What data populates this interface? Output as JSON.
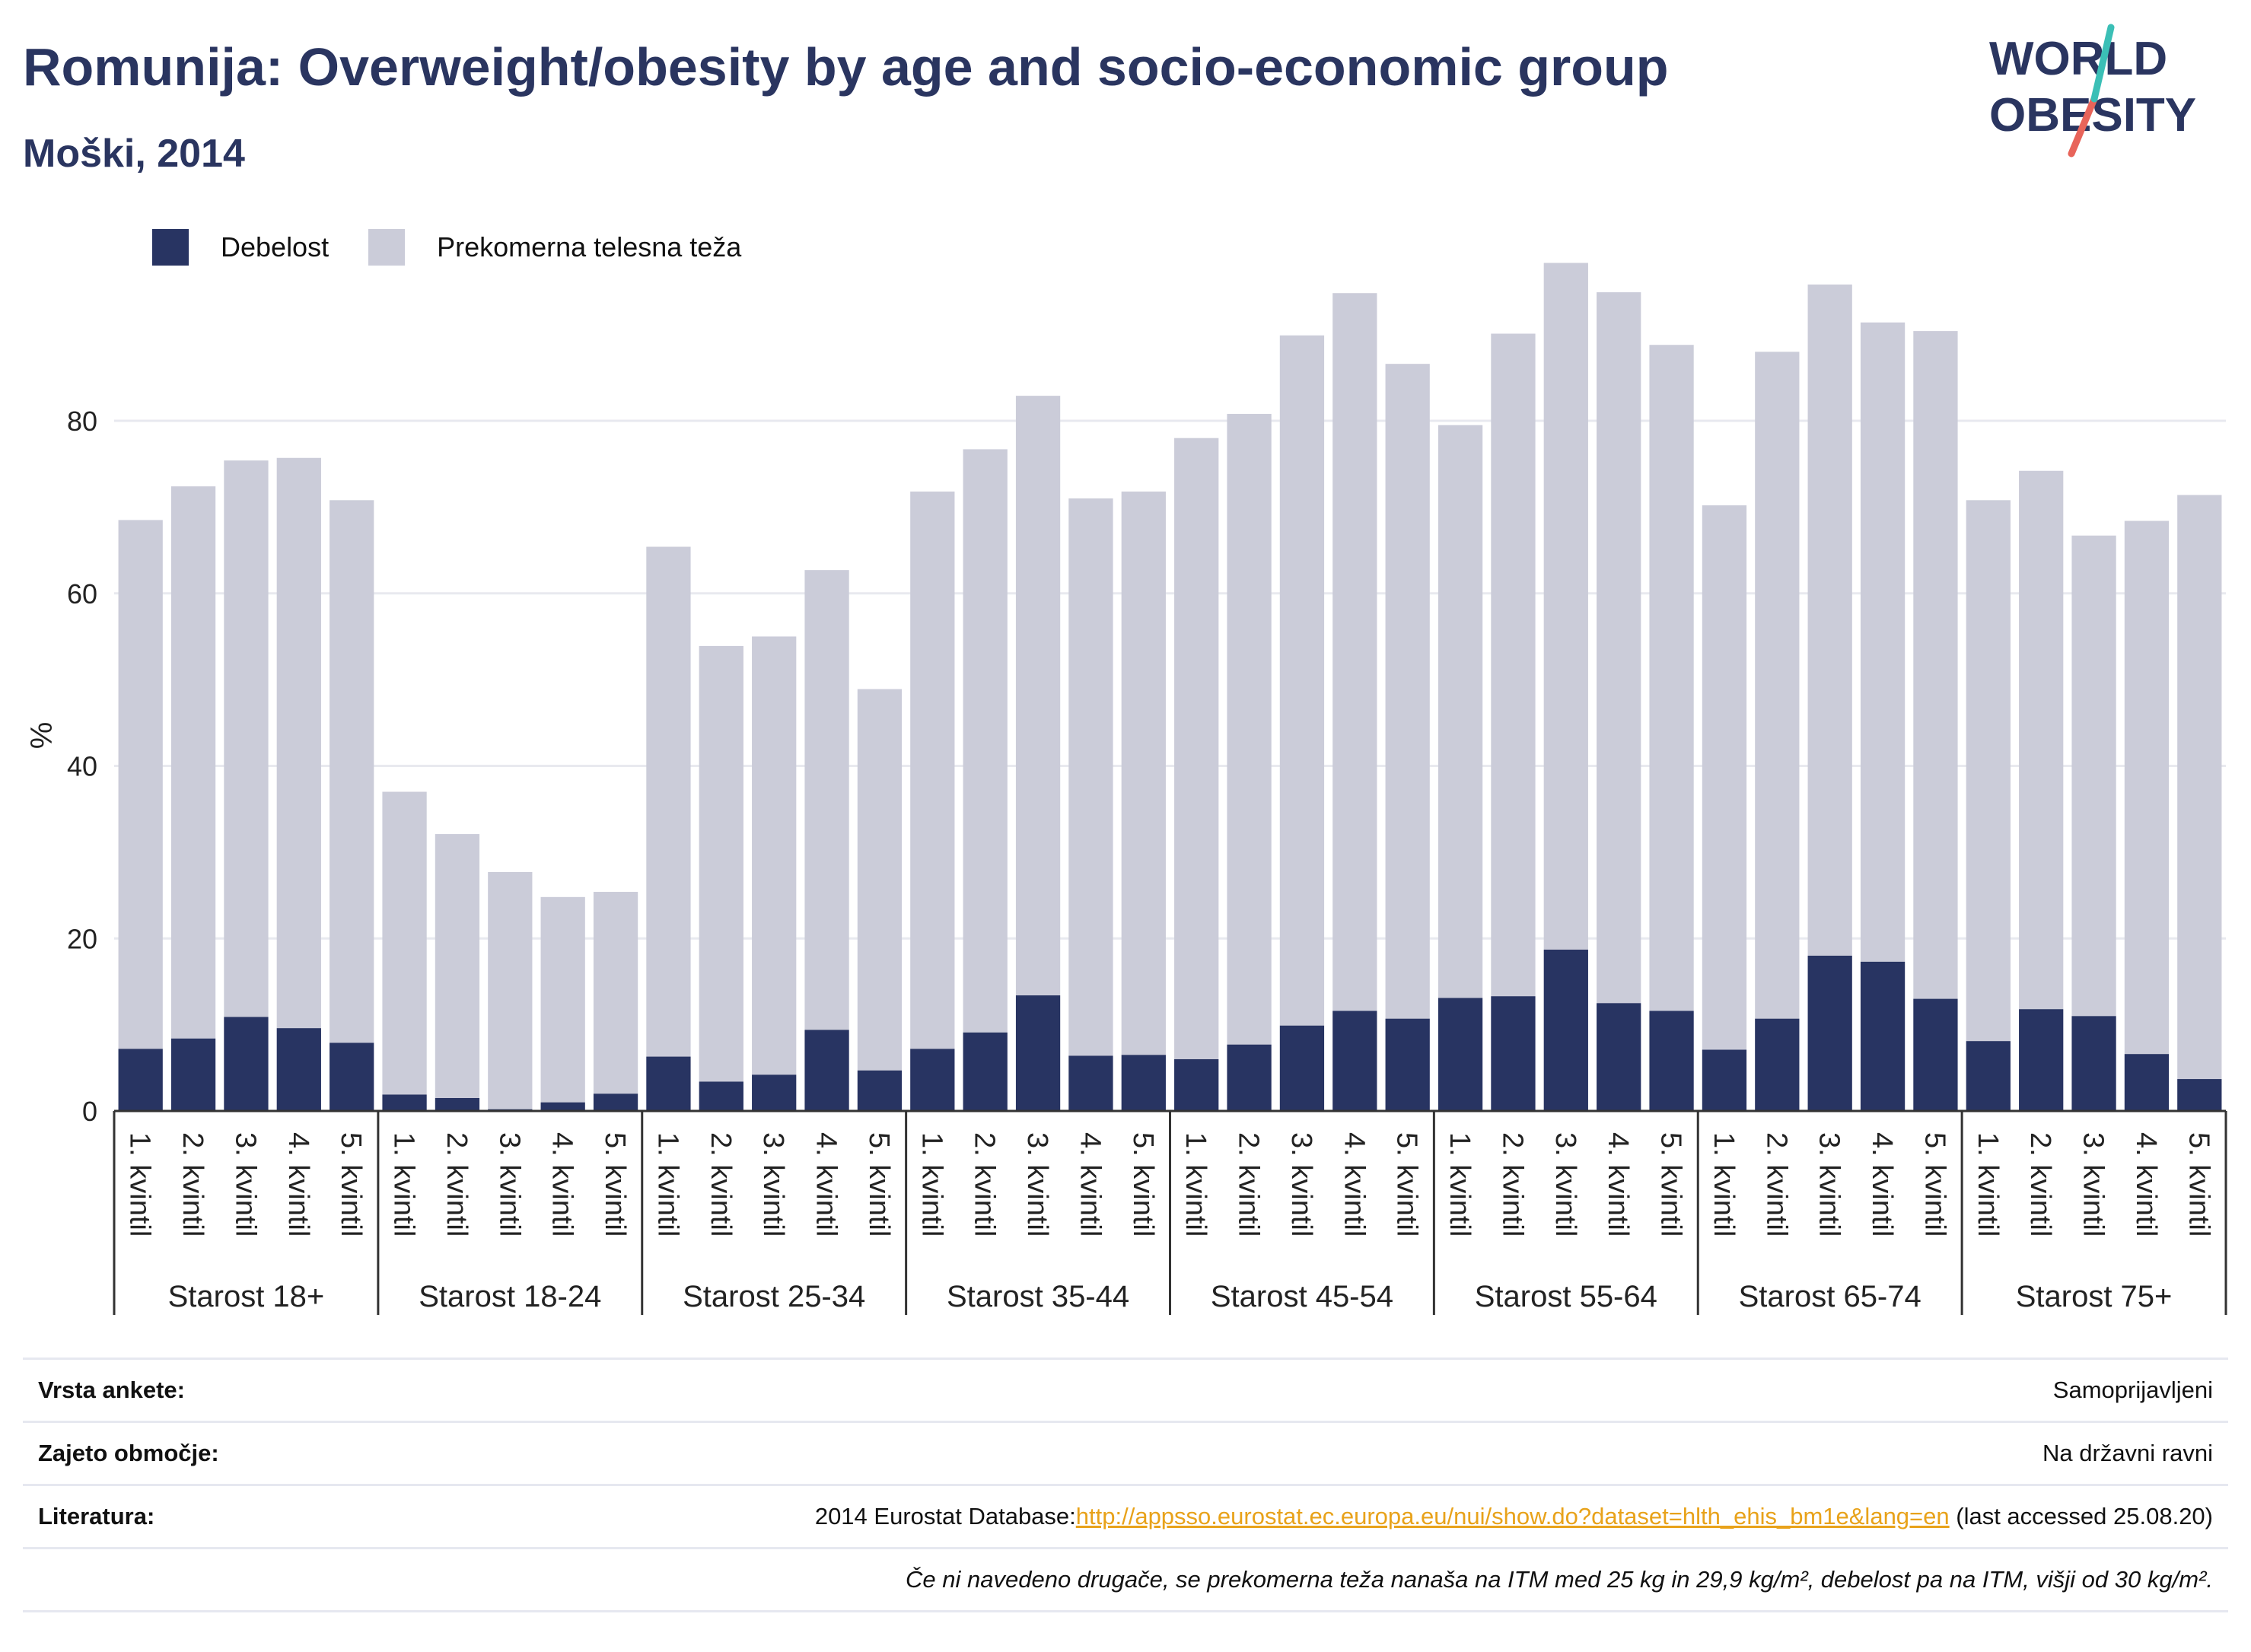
{
  "title": "Romunija: Overweight/obesity by age and socio-economic group",
  "subtitle": "Moški, 2014",
  "logo": {
    "line1": "WORLD",
    "line2": "OBESITY"
  },
  "colors": {
    "obesity": "#283462",
    "overweight": "#cbccd9",
    "title": "#2a3560",
    "link": "#e8a21a",
    "logo_teal": "#3bbfb6",
    "logo_red": "#e8645a"
  },
  "chart_data": {
    "type": "bar",
    "stacked": true,
    "ylabel": "%",
    "ylim": [
      0,
      90
    ],
    "yticks": [
      0,
      20,
      40,
      60,
      80
    ],
    "grid": true,
    "legend_position": "top-left",
    "groups": [
      "Starost 18+",
      "Starost 18-24",
      "Starost 25-34",
      "Starost 35-44",
      "Starost 45-54",
      "Starost 55-64",
      "Starost 65-74",
      "Starost 75+"
    ],
    "subcategories": [
      "1. kvintil",
      "2. kvintil",
      "3. kvintil",
      "4. kvintil",
      "5. kvintil"
    ],
    "series": [
      {
        "name": "Debelost",
        "values": [
          7.2,
          8.4,
          10.9,
          9.6,
          7.9,
          1.9,
          1.5,
          0.2,
          1.0,
          2.0,
          6.3,
          3.4,
          4.2,
          9.4,
          4.7,
          7.2,
          9.1,
          13.4,
          6.4,
          6.5,
          6.0,
          7.7,
          9.9,
          11.6,
          10.7,
          13.1,
          13.3,
          18.7,
          12.5,
          11.6,
          7.1,
          10.7,
          18.0,
          17.3,
          13.0,
          8.1,
          11.8,
          11.0,
          6.6,
          3.7
        ]
      },
      {
        "name": "Prekomerna telesna teža",
        "values": [
          61.3,
          64.0,
          64.5,
          66.1,
          62.9,
          35.1,
          30.6,
          27.5,
          23.8,
          23.4,
          59.1,
          50.5,
          50.8,
          53.3,
          44.2,
          64.6,
          67.6,
          69.5,
          64.6,
          65.3,
          72.0,
          73.1,
          80.0,
          83.2,
          75.9,
          66.4,
          76.8,
          79.6,
          82.4,
          77.2,
          63.1,
          77.3,
          77.8,
          74.1,
          77.4,
          62.7,
          62.4,
          55.7,
          61.8,
          67.7
        ]
      }
    ]
  },
  "footer": {
    "rows": [
      {
        "label": "Vrsta ankete:",
        "value": "Samoprijavljeni"
      },
      {
        "label": "Zajeto območje:",
        "value": "Na državni ravni"
      }
    ],
    "lit_label": "Literatura:",
    "lit_prefix": "2014 Eurostat Database:",
    "lit_link": "http://appsso.eurostat.ec.europa.eu/nui/show.do?dataset=hlth_ehis_bm1e&lang=en",
    "lit_suffix": " (last accessed 25.08.20)",
    "note": "Če ni navedeno drugače, se prekomerna teža nanaša na ITM med 25 kg in 29,9 kg/m², debelost pa na ITM, višji od 30 kg/m²."
  }
}
